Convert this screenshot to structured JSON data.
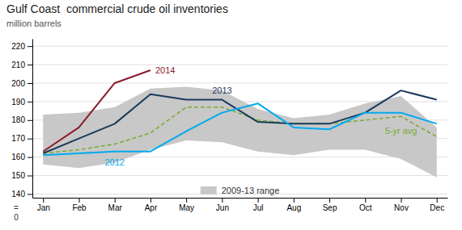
{
  "chart_data": {
    "type": "line",
    "title": "Gulf Coast  commercial crude oil inventories",
    "y_label": "million barrels",
    "categories": [
      "Jan",
      "Feb",
      "Mar",
      "Apr",
      "May",
      "Jun",
      "Jul",
      "Aug",
      "Sep",
      "Oct",
      "Nov",
      "Dec"
    ],
    "series": [
      {
        "name": "2009-13 range",
        "type": "range",
        "color": "#c8c8c8",
        "lower": [
          156,
          154,
          157,
          164,
          169,
          168,
          163,
          161,
          164,
          164,
          159,
          149
        ],
        "upper": [
          183,
          184,
          187,
          197,
          198,
          196,
          186,
          181,
          183,
          189,
          193,
          176
        ]
      },
      {
        "name": "5-yr avg",
        "color": "#7aaa30",
        "line_style": "dashed",
        "values": [
          162,
          164,
          167,
          173,
          187,
          187,
          180,
          178,
          178,
          180,
          182,
          171
        ]
      },
      {
        "name": "2013",
        "color": "#1a3a5c",
        "values": [
          162,
          170,
          178,
          194,
          191,
          191,
          179,
          178,
          178,
          184,
          196,
          191
        ]
      },
      {
        "name": "2012",
        "color": "#00aaee",
        "values": [
          161,
          162,
          163,
          163,
          174,
          184,
          189,
          176,
          175,
          184,
          184,
          178
        ]
      },
      {
        "name": "2014",
        "color": "#8b1a2a",
        "values": [
          163,
          176,
          200,
          207,
          null,
          null,
          null,
          null,
          null,
          null,
          null,
          null
        ]
      }
    ],
    "ylim": [
      138,
      224
    ],
    "yticks": [
      140,
      150,
      160,
      170,
      180,
      190,
      200,
      210,
      220
    ],
    "grid": true,
    "legend": "bottom",
    "annotations": [
      "=",
      "0"
    ]
  }
}
